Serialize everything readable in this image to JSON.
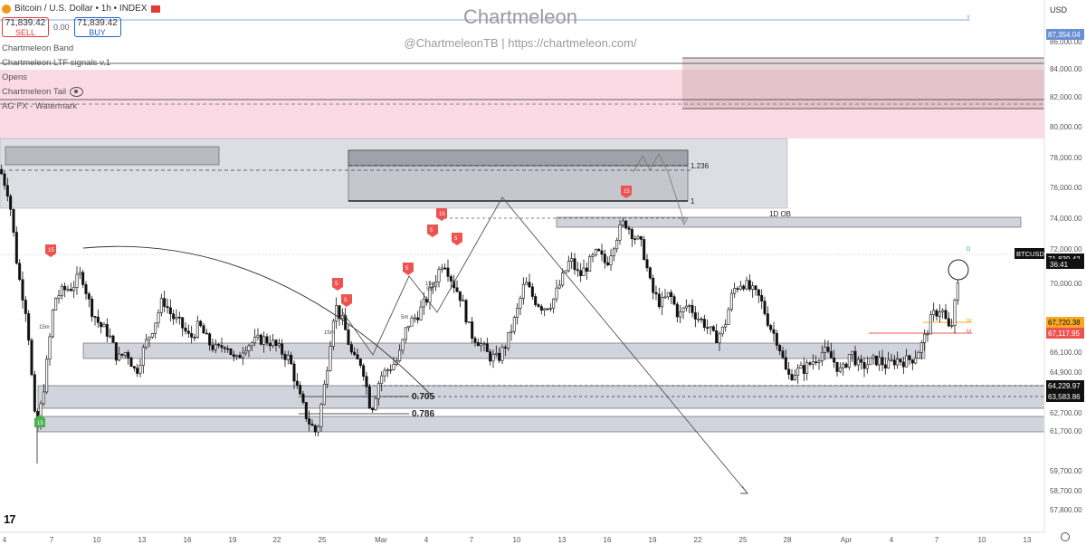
{
  "header": {
    "symbol_title": "Bitcoin / U.S. Dollar • 1h • INDEX",
    "sell_price": "71,839.42",
    "sell_label": "SELL",
    "spread": "0.00",
    "buy_price": "71,839.42",
    "buy_label": "BUY"
  },
  "indicators": [
    "Chartmeleon Band",
    "Chartmeleon LTF signals v.1",
    "Opens",
    "Chartmeleon Tail",
    "AG FX - Watermark"
  ],
  "watermark": {
    "title": "Chartmeleon",
    "subtitle": "@ChartmeleonTB     |     https://chartmeleon.com/"
  },
  "currency": "USD",
  "colors": {
    "bull": "#26a69a",
    "bear": "#ef5350",
    "zone": "#d1d4dc",
    "supply": "#f8bbd0"
  },
  "chart_data": {
    "type": "candlestick",
    "symbol": "BTCUSD",
    "last_price": "71,839.42",
    "countdown": "36:41",
    "y_range": [
      57000,
      87800
    ],
    "y_ticks": [
      "86,000.00",
      "84,000.00",
      "82,000.00",
      "80,000.00",
      "78,000.00",
      "76,000.00",
      "74,000.00",
      "72,000.00",
      "70,000.00",
      "68,100.00",
      "66,100.00",
      "64,900.00",
      "62,700.00",
      "61,700.00",
      "59,700.00",
      "58,700.00",
      "57,800.00"
    ],
    "x_ticks": [
      "4",
      "7",
      "10",
      "13",
      "16",
      "19",
      "22",
      "25",
      "Mar",
      "4",
      "7",
      "10",
      "13",
      "16",
      "19",
      "22",
      "25",
      "28",
      "Apr",
      "4",
      "7",
      "10",
      "13"
    ],
    "price_labels": [
      {
        "text": "87,354.04",
        "price": 87354
      },
      {
        "text": "71,839.42",
        "price": 71839
      },
      {
        "text": "67,720.38",
        "price": 67720
      },
      {
        "text": "67,117.95",
        "price": 67118
      },
      {
        "text": "64,229.97",
        "price": 64230
      },
      {
        "text": "63,583.86",
        "price": 63584
      }
    ],
    "fib_levels": [
      {
        "label": "1.236",
        "price": 78500
      },
      {
        "label": "1",
        "price": 75150
      },
      {
        "label": "0.705",
        "price": 63600
      },
      {
        "label": "0.786",
        "price": 62500
      }
    ],
    "zone_labels": {
      "ob": "1D OB"
    },
    "marks": {
      "tf1": "15m",
      "tf2": "5m",
      "tf3": "15m",
      "tf4": "15m",
      "tf5": "5m",
      "d": "D",
      "w": "W",
      "m": "M",
      "y": "Y"
    },
    "path": [
      [
        0,
        78000
      ],
      [
        10,
        76500
      ],
      [
        20,
        72000
      ],
      [
        30,
        69500
      ],
      [
        40,
        62500
      ],
      [
        50,
        66000
      ],
      [
        60,
        70500
      ],
      [
        70,
        71000
      ],
      [
        80,
        71200
      ],
      [
        90,
        72000
      ],
      [
        100,
        70000
      ],
      [
        110,
        69000
      ],
      [
        120,
        68500
      ],
      [
        130,
        67000
      ],
      [
        140,
        67500
      ],
      [
        150,
        66200
      ],
      [
        160,
        67800
      ],
      [
        170,
        69000
      ],
      [
        180,
        70500
      ],
      [
        190,
        69500
      ],
      [
        200,
        69000
      ],
      [
        210,
        68200
      ],
      [
        220,
        69000
      ],
      [
        230,
        68000
      ],
      [
        240,
        67500
      ],
      [
        250,
        68000
      ],
      [
        260,
        66800
      ],
      [
        270,
        67800
      ],
      [
        280,
        68000
      ],
      [
        290,
        68200
      ],
      [
        300,
        68000
      ],
      [
        310,
        67500
      ],
      [
        320,
        67000
      ],
      [
        330,
        65000
      ],
      [
        340,
        63500
      ],
      [
        350,
        62700
      ],
      [
        360,
        66000
      ],
      [
        370,
        70200
      ],
      [
        380,
        69000
      ],
      [
        390,
        67000
      ],
      [
        400,
        66800
      ],
      [
        410,
        64000
      ],
      [
        420,
        66000
      ],
      [
        430,
        66500
      ],
      [
        440,
        67000
      ],
      [
        450,
        69000
      ],
      [
        460,
        69500
      ],
      [
        470,
        70300
      ],
      [
        480,
        71500
      ],
      [
        490,
        72800
      ],
      [
        500,
        71500
      ],
      [
        510,
        70500
      ],
      [
        520,
        68500
      ],
      [
        530,
        68000
      ],
      [
        540,
        67200
      ],
      [
        550,
        67000
      ],
      [
        560,
        68000
      ],
      [
        570,
        69500
      ],
      [
        580,
        71500
      ],
      [
        590,
        70500
      ],
      [
        600,
        70000
      ],
      [
        610,
        70300
      ],
      [
        620,
        71500
      ],
      [
        630,
        72800
      ],
      [
        640,
        71800
      ],
      [
        650,
        72500
      ],
      [
        660,
        73200
      ],
      [
        670,
        72500
      ],
      [
        680,
        74000
      ],
      [
        690,
        75000
      ],
      [
        700,
        74200
      ],
      [
        710,
        73500
      ],
      [
        720,
        71000
      ],
      [
        730,
        70200
      ],
      [
        740,
        70800
      ],
      [
        750,
        69500
      ],
      [
        760,
        70200
      ],
      [
        770,
        69500
      ],
      [
        780,
        69000
      ],
      [
        790,
        68200
      ],
      [
        800,
        68800
      ],
      [
        810,
        71000
      ],
      [
        820,
        71500
      ],
      [
        830,
        71000
      ],
      [
        840,
        70500
      ],
      [
        850,
        69000
      ],
      [
        860,
        68000
      ],
      [
        870,
        66000
      ],
      [
        880,
        66300
      ],
      [
        890,
        66500
      ],
      [
        900,
        67000
      ],
      [
        910,
        67500
      ],
      [
        920,
        67000
      ],
      [
        930,
        66200
      ],
      [
        940,
        67500
      ],
      [
        950,
        66500
      ],
      [
        960,
        66800
      ],
      [
        970,
        67000
      ],
      [
        980,
        66600
      ],
      [
        990,
        67000
      ],
      [
        1000,
        66900
      ],
      [
        1010,
        67100
      ],
      [
        1020,
        68000
      ],
      [
        1030,
        69500
      ],
      [
        1040,
        70000
      ],
      [
        1050,
        68500
      ],
      [
        1060,
        71800
      ]
    ]
  }
}
